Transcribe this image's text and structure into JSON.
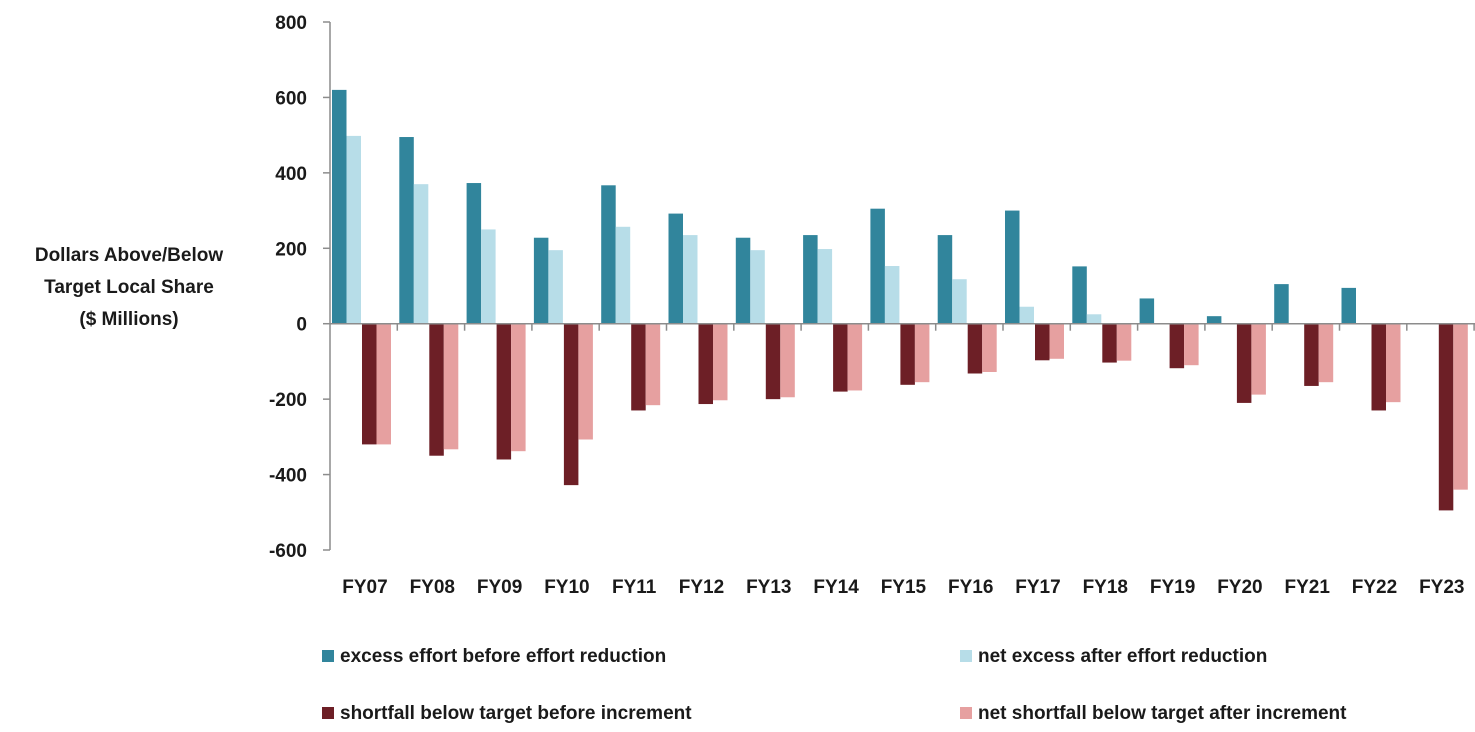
{
  "chart_data": {
    "type": "bar",
    "title": "",
    "xlabel": "",
    "ylabel_lines": [
      "Dollars Above/Below",
      "Target Local Share",
      "($ Millions)"
    ],
    "ylim": [
      -600,
      800
    ],
    "yticks": [
      800,
      600,
      400,
      200,
      0,
      -200,
      -400,
      -600
    ],
    "ytick_labels": [
      "800",
      "600",
      "400",
      "200",
      "0",
      "-200",
      "-400",
      "-600"
    ],
    "grid": false,
    "legend_position": "bottom",
    "categories": [
      "FY07",
      "FY08",
      "FY09",
      "FY10",
      "FY11",
      "FY12",
      "FY13",
      "FY14",
      "FY15",
      "FY16",
      "FY17",
      "FY18",
      "FY19",
      "FY20",
      "FY21",
      "FY22",
      "FY23"
    ],
    "series": [
      {
        "name": "excess effort before effort reduction",
        "color": "#31859c",
        "values": [
          620,
          495,
          373,
          228,
          367,
          292,
          228,
          235,
          305,
          235,
          300,
          152,
          67,
          20,
          105,
          95,
          0
        ]
      },
      {
        "name": "net excess after effort reduction",
        "color": "#b7dde8",
        "values": [
          498,
          370,
          250,
          195,
          257,
          235,
          195,
          198,
          153,
          118,
          45,
          25,
          0,
          0,
          0,
          0,
          0
        ]
      },
      {
        "name": "shortfall below target before increment",
        "color": "#6d1f26",
        "values": [
          -320,
          -350,
          -360,
          -428,
          -230,
          -213,
          -200,
          -180,
          -162,
          -132,
          -97,
          -103,
          -118,
          -210,
          -165,
          -230,
          -495
        ]
      },
      {
        "name": "net shortfall below target after increment",
        "color": "#e6a0a0",
        "values": [
          -320,
          -333,
          -338,
          -307,
          -216,
          -203,
          -195,
          -177,
          -155,
          -128,
          -93,
          -98,
          -110,
          -188,
          -155,
          -208,
          -440
        ]
      }
    ]
  }
}
